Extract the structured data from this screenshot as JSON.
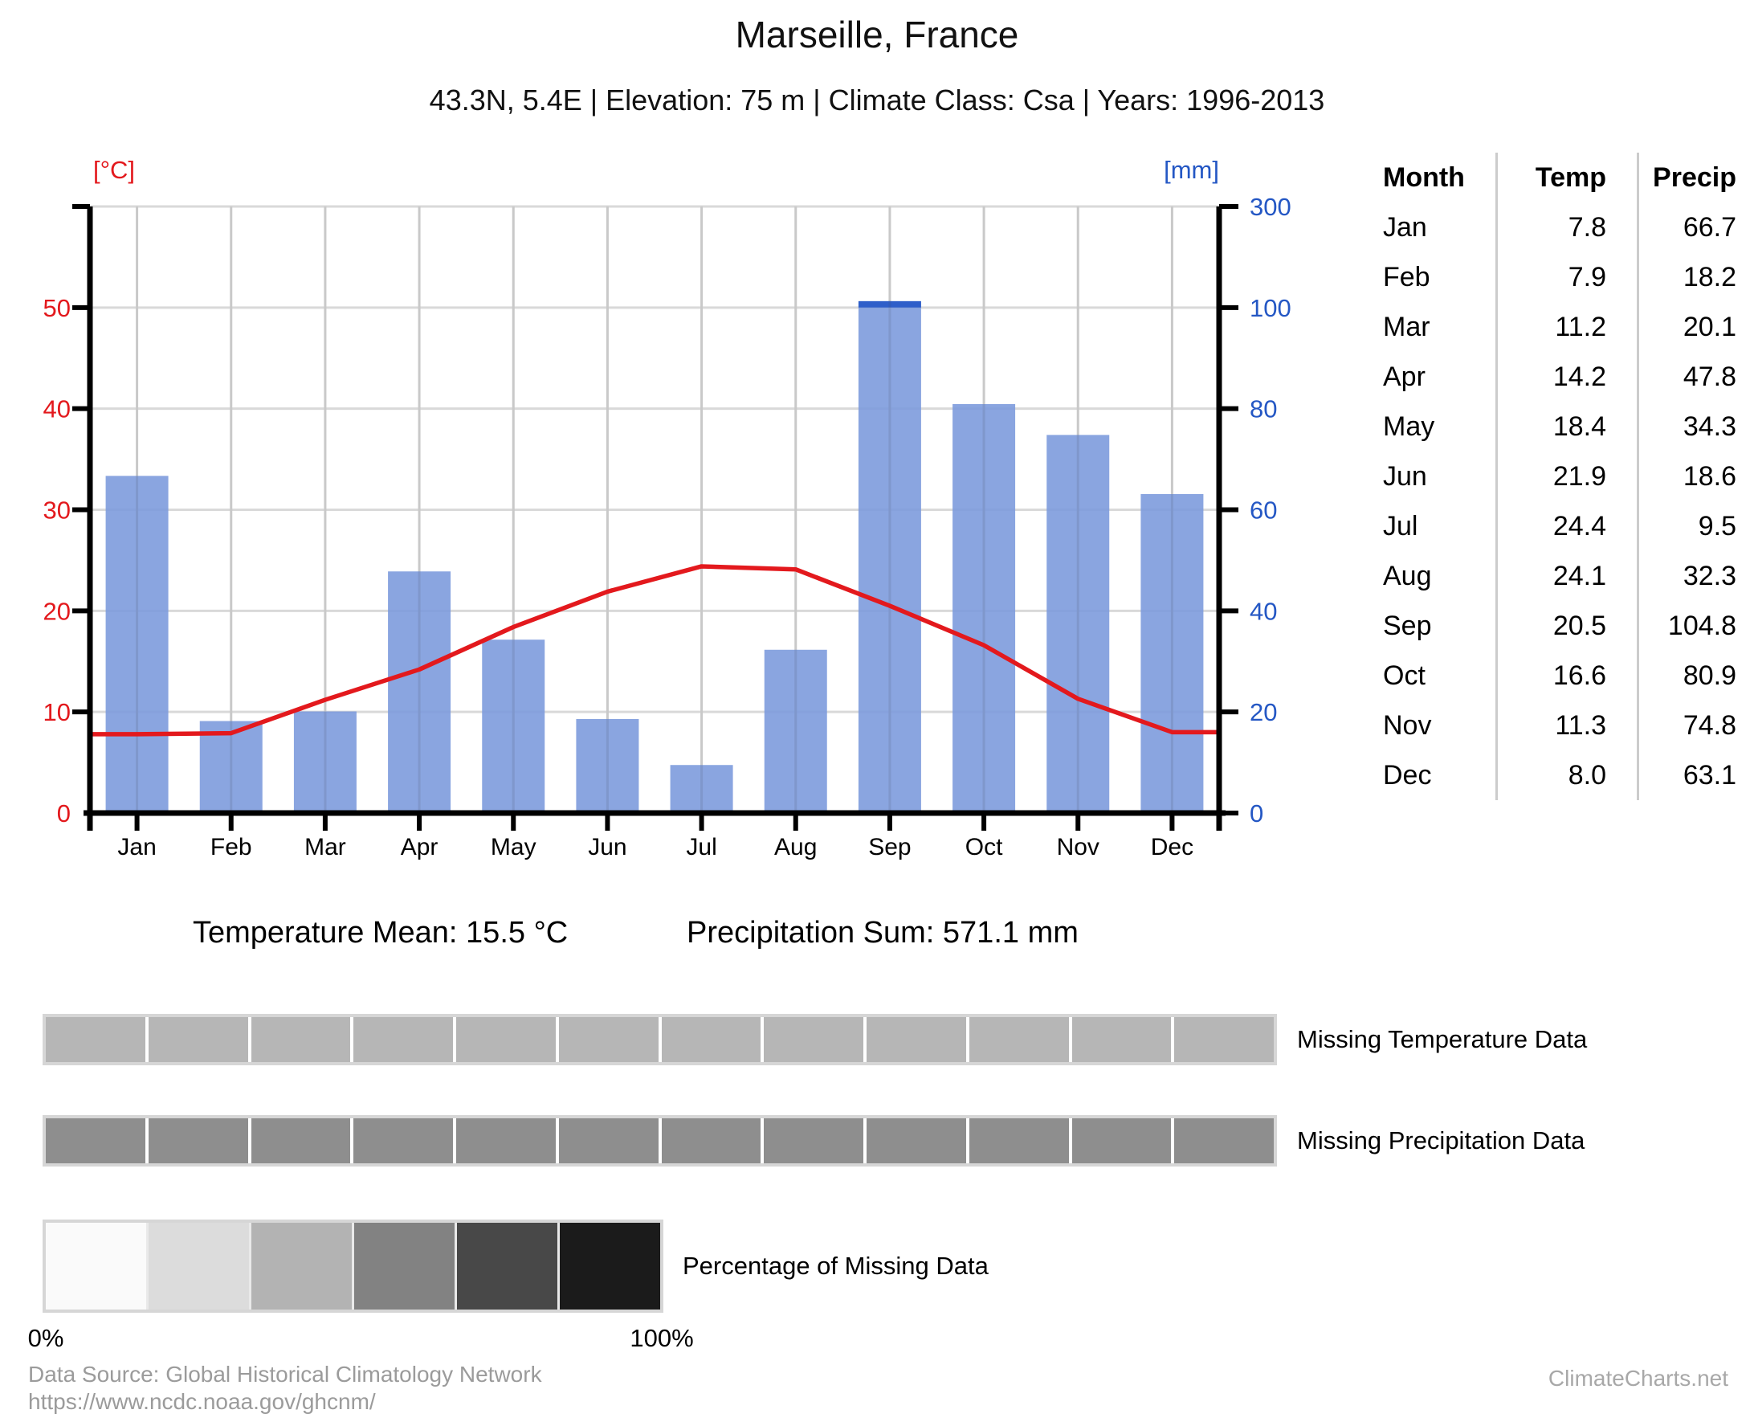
{
  "page": {
    "title": "Marseille, France",
    "subtitle": "43.3N, 5.4E | Elevation: 75 m | Climate Class: Csa | Years: 1996-2013",
    "summary": {
      "temperature_mean": "Temperature Mean: 15.5 °C",
      "precipitation_sum": "Precipitation Sum: 571.1 mm"
    },
    "footer": {
      "source_line1": "Data Source: Global Historical Climatology Network",
      "source_line2": "https://www.ncdc.noaa.gov/ghcnm/",
      "brand": "ClimateCharts.net"
    }
  },
  "chart_data": {
    "type": "bar+line (Walter-Lieth climate diagram)",
    "title": "Marseille, France",
    "categories": [
      "Jan",
      "Feb",
      "Mar",
      "Apr",
      "May",
      "Jun",
      "Jul",
      "Aug",
      "Sep",
      "Oct",
      "Nov",
      "Dec"
    ],
    "series": [
      {
        "name": "Temperature",
        "type": "line",
        "unit": "°C",
        "color": "#e3191d",
        "values": [
          7.8,
          7.9,
          11.2,
          14.2,
          18.4,
          21.9,
          24.4,
          24.1,
          20.5,
          16.6,
          11.3,
          8.0
        ]
      },
      {
        "name": "Precipitation",
        "type": "bar",
        "unit": "mm",
        "color": "#7a99dc",
        "overflow_color": "#2e5ec9",
        "values": [
          66.7,
          18.2,
          20.1,
          47.8,
          34.3,
          18.6,
          9.5,
          32.3,
          104.8,
          80.9,
          74.8,
          63.1
        ]
      }
    ],
    "left_axis": {
      "label": "[°C]",
      "color": "#e3191d",
      "tick_values": [
        0,
        10,
        20,
        30,
        40,
        50
      ],
      "range": [
        0,
        60
      ]
    },
    "right_axis": {
      "label": "[mm]",
      "color": "#2457c4",
      "tick_labels": [
        "0",
        "20",
        "40",
        "60",
        "80",
        "100",
        "300"
      ],
      "range_mm": [
        0,
        300
      ],
      "scale_note": "linear 0-100 mm (20 mm per gridline), compressed 100-300 mm in top band"
    },
    "grid": {
      "shown": true,
      "color": "#d9d9d9"
    },
    "legend_position": "none"
  },
  "table": {
    "headers": [
      "Month",
      "Temp",
      "Precip"
    ],
    "rows": [
      [
        "Jan",
        "7.8",
        "66.7"
      ],
      [
        "Feb",
        "7.9",
        "18.2"
      ],
      [
        "Mar",
        "11.2",
        "20.1"
      ],
      [
        "Apr",
        "14.2",
        "47.8"
      ],
      [
        "May",
        "18.4",
        "34.3"
      ],
      [
        "Jun",
        "21.9",
        "18.6"
      ],
      [
        "Jul",
        "24.4",
        "9.5"
      ],
      [
        "Aug",
        "24.1",
        "32.3"
      ],
      [
        "Sep",
        "20.5",
        "104.8"
      ],
      [
        "Oct",
        "16.6",
        "80.9"
      ],
      [
        "Nov",
        "11.3",
        "74.8"
      ],
      [
        "Dec",
        "8.0",
        "63.1"
      ]
    ]
  },
  "missing_data": {
    "segments_per_strip": 12,
    "temperature": {
      "label": "Missing Temperature Data",
      "segment_color": "#b6b6b6"
    },
    "precipitation": {
      "label": "Missing Precipitation Data",
      "segment_color": "#8e8e8e"
    },
    "legend": {
      "label": "Percentage of Missing Data",
      "colors": [
        "#fafafa",
        "#dcdcdc",
        "#b3b3b3",
        "#828282",
        "#484848",
        "#1b1b1b"
      ],
      "min_label": "0%",
      "max_label": "100%"
    }
  }
}
